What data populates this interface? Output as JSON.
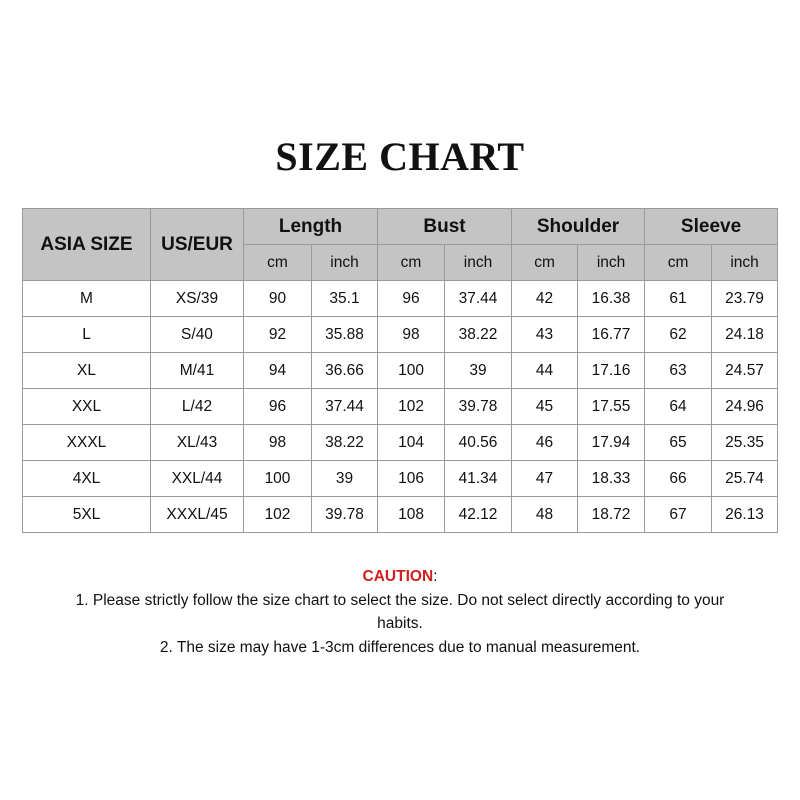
{
  "title": "SIZE CHART",
  "table": {
    "headers": {
      "asia": "ASIA SIZE",
      "us": "US/EUR",
      "groups": [
        "Length",
        "Bust",
        "Shoulder",
        "Sleeve"
      ],
      "units": [
        "cm",
        "inch",
        "cm",
        "inch",
        "cm",
        "inch",
        "cm",
        "inch"
      ]
    },
    "rows": [
      [
        "M",
        "XS/39",
        "90",
        "35.1",
        "96",
        "37.44",
        "42",
        "16.38",
        "61",
        "23.79"
      ],
      [
        "L",
        "S/40",
        "92",
        "35.88",
        "98",
        "38.22",
        "43",
        "16.77",
        "62",
        "24.18"
      ],
      [
        "XL",
        "M/41",
        "94",
        "36.66",
        "100",
        "39",
        "44",
        "17.16",
        "63",
        "24.57"
      ],
      [
        "XXL",
        "L/42",
        "96",
        "37.44",
        "102",
        "39.78",
        "45",
        "17.55",
        "64",
        "24.96"
      ],
      [
        "XXXL",
        "XL/43",
        "98",
        "38.22",
        "104",
        "40.56",
        "46",
        "17.94",
        "65",
        "25.35"
      ],
      [
        "4XL",
        "XXL/44",
        "100",
        "39",
        "106",
        "41.34",
        "47",
        "18.33",
        "66",
        "25.74"
      ],
      [
        "5XL",
        "XXXL/45",
        "102",
        "39.78",
        "108",
        "42.12",
        "48",
        "18.72",
        "67",
        "26.13"
      ]
    ]
  },
  "caution": {
    "label": "CAUTION",
    "colon": ":",
    "line1": "1. Please strictly follow the size chart to select the size. Do not select directly according to your",
    "line1b": "habits.",
    "line2": "2. The size may have 1-3cm differences due to manual measurement."
  },
  "colors": {
    "header_bg": "#c4c4c4",
    "caution": "#d21e1e"
  }
}
